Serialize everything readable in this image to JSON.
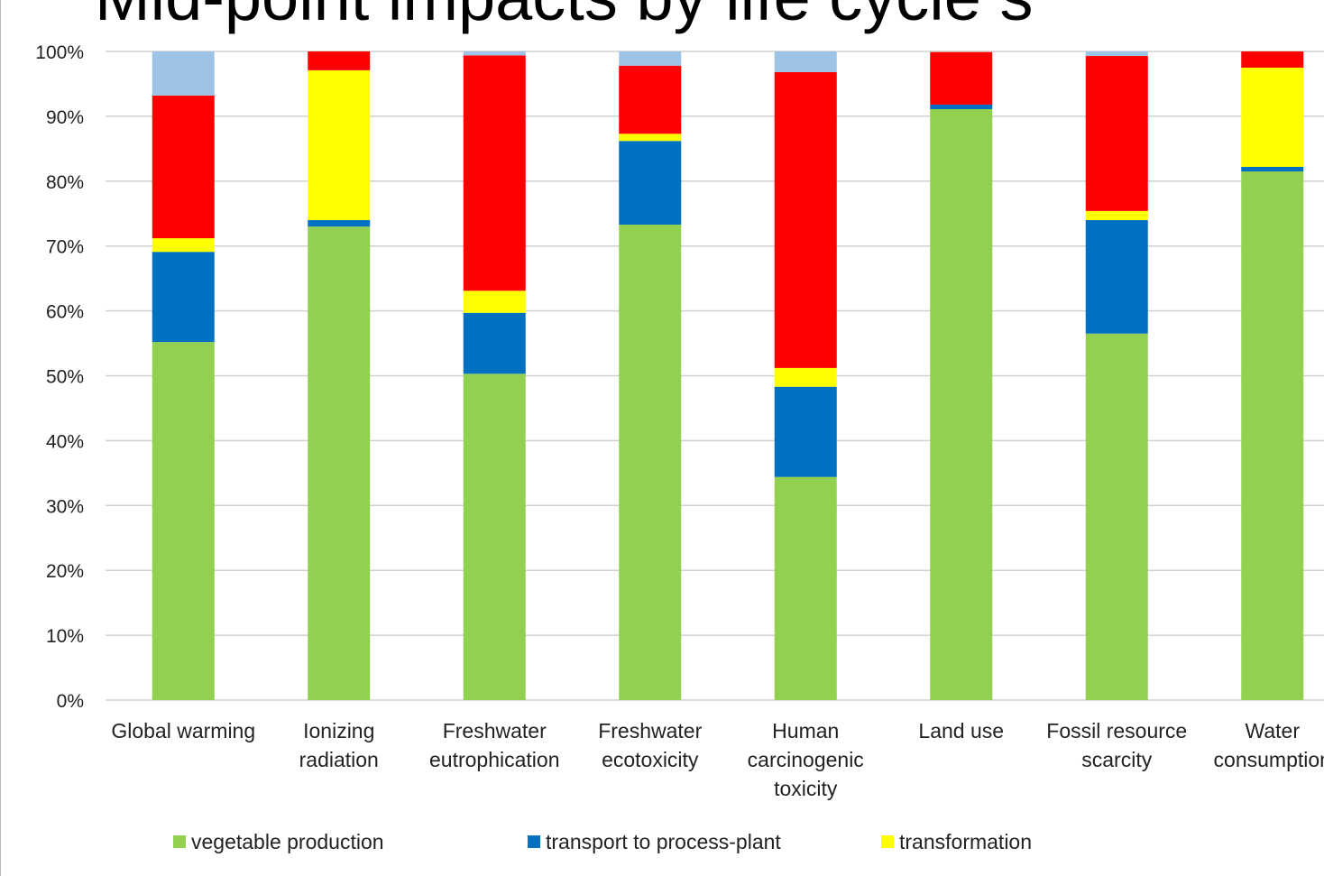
{
  "chart_data": {
    "type": "stacked_bar",
    "title": "Mid-point impacts by life cycle s",
    "categories": [
      "Global warming",
      "Ionizing radiation",
      "Freshwater eutrophication",
      "Freshwater ecotoxicity",
      "Human carcinogenic toxicity",
      "Land use",
      "Fossil resource scarcity",
      "Water consumption"
    ],
    "series": [
      {
        "name": "vegetable production",
        "color": "#92d050",
        "values": [
          55.2,
          73.0,
          50.3,
          73.3,
          34.4,
          91.1,
          56.5,
          81.5
        ]
      },
      {
        "name": "transport to process-plant",
        "color": "#0070c0",
        "values": [
          13.9,
          1.0,
          9.4,
          12.9,
          13.9,
          0.7,
          17.5,
          0.7
        ]
      },
      {
        "name": "transformation",
        "color": "#ffff00",
        "values": [
          2.1,
          23.1,
          3.4,
          1.1,
          2.9,
          0,
          1.4,
          15.3
        ]
      },
      {
        "color": "#ff0000",
        "values": [
          22.0,
          2.9,
          36.3,
          10.5,
          45.6,
          8.1,
          23.9,
          2.5
        ]
      },
      {
        "color": "#9dc3e6",
        "values": [
          6.8,
          0,
          0.6,
          2.2,
          3.2,
          0,
          0.7,
          0
        ]
      }
    ],
    "ylim": [
      0,
      100
    ],
    "yticks": [
      {
        "value": 0,
        "label": "0%"
      },
      {
        "value": 10,
        "label": "10%"
      },
      {
        "value": 20,
        "label": "20%"
      },
      {
        "value": 30,
        "label": "30%"
      },
      {
        "value": 40,
        "label": "40%"
      },
      {
        "value": 50,
        "label": "50%"
      },
      {
        "value": 60,
        "label": "60%"
      },
      {
        "value": 70,
        "label": "70%"
      },
      {
        "value": 80,
        "label": "80%"
      },
      {
        "value": 90,
        "label": "90%"
      },
      {
        "value": 100,
        "label": "100%"
      }
    ],
    "grid": true,
    "legend": "bottom"
  }
}
